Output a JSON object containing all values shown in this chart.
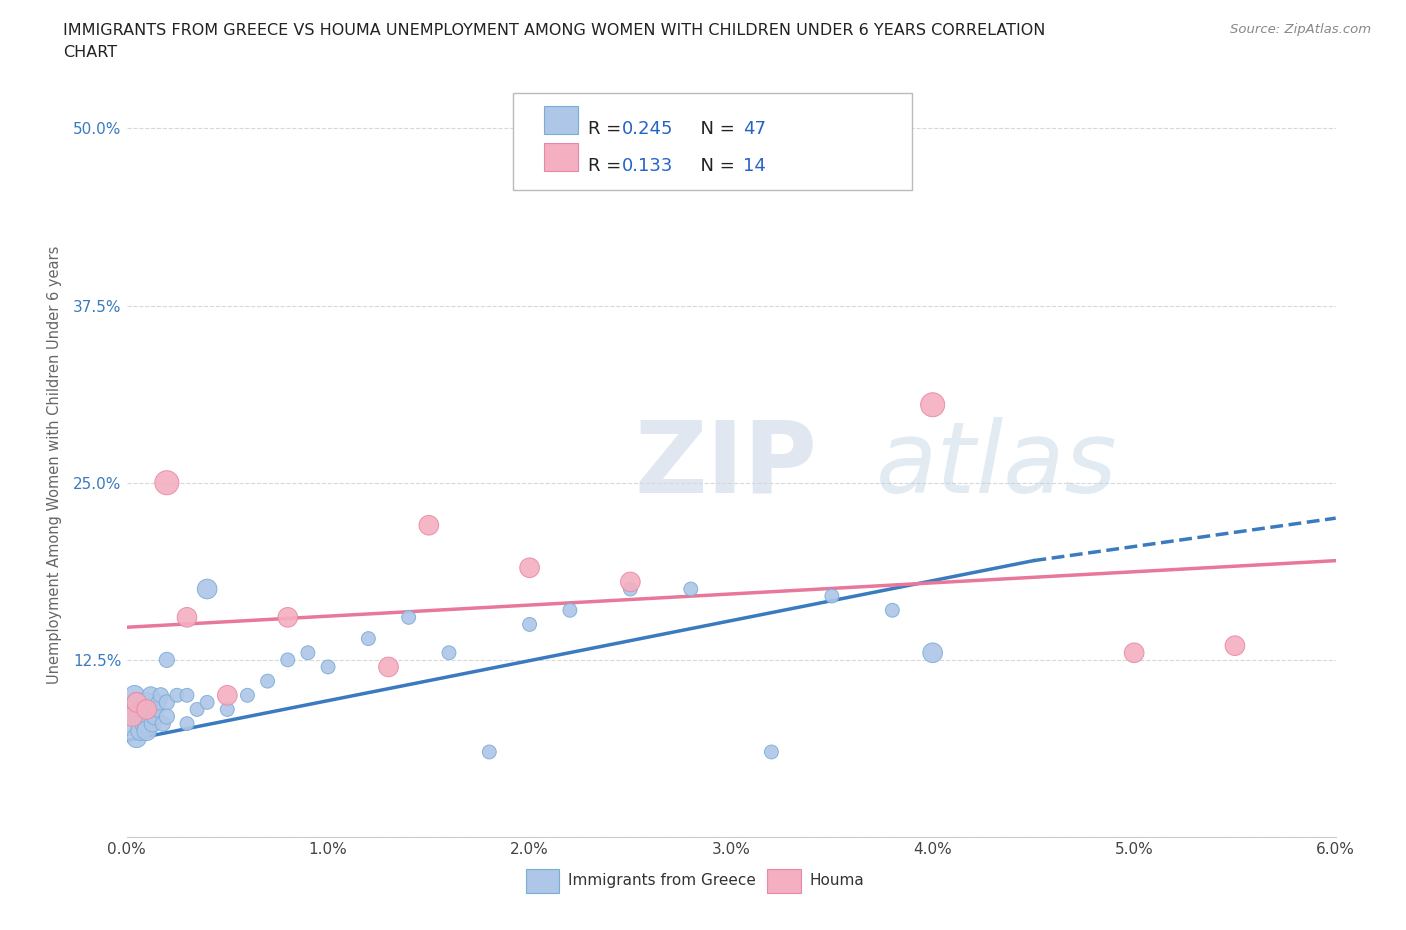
{
  "title_line1": "IMMIGRANTS FROM GREECE VS HOUMA UNEMPLOYMENT AMONG WOMEN WITH CHILDREN UNDER 6 YEARS CORRELATION",
  "title_line2": "CHART",
  "source": "Source: ZipAtlas.com",
  "ylabel": "Unemployment Among Women with Children Under 6 years",
  "xlim": [
    0.0,
    0.06
  ],
  "ylim": [
    0.0,
    0.525
  ],
  "xticks": [
    0.0,
    0.01,
    0.02,
    0.03,
    0.04,
    0.05,
    0.06
  ],
  "xticklabels": [
    "0.0%",
    "1.0%",
    "2.0%",
    "3.0%",
    "4.0%",
    "5.0%",
    "6.0%"
  ],
  "yticks": [
    0.0,
    0.125,
    0.25,
    0.375,
    0.5
  ],
  "yticklabels": [
    "",
    "12.5%",
    "25.0%",
    "37.5%",
    "50.0%"
  ],
  "legend_r1": "R = 0.245",
  "legend_n1": "N = 47",
  "legend_r2": "R =  0.133",
  "legend_n2": "N = 14",
  "blue_color": "#aec6e8",
  "blue_edge_color": "#7aadd4",
  "pink_color": "#f4afc0",
  "pink_edge_color": "#e888a8",
  "blue_line_color": "#3a7abf",
  "pink_line_color": "#e8789a",
  "blue_scatter_x": [
    0.0002,
    0.0003,
    0.0004,
    0.0005,
    0.0005,
    0.0006,
    0.0007,
    0.0008,
    0.0009,
    0.001,
    0.001,
    0.001,
    0.0012,
    0.0012,
    0.0013,
    0.0014,
    0.0015,
    0.0016,
    0.0017,
    0.0018,
    0.002,
    0.002,
    0.002,
    0.0025,
    0.003,
    0.003,
    0.0035,
    0.004,
    0.004,
    0.005,
    0.006,
    0.007,
    0.008,
    0.009,
    0.01,
    0.012,
    0.014,
    0.016,
    0.018,
    0.02,
    0.022,
    0.025,
    0.028,
    0.032,
    0.035,
    0.038,
    0.04
  ],
  "blue_scatter_y": [
    0.08,
    0.09,
    0.1,
    0.07,
    0.095,
    0.085,
    0.075,
    0.09,
    0.08,
    0.095,
    0.085,
    0.075,
    0.09,
    0.1,
    0.08,
    0.085,
    0.09,
    0.095,
    0.1,
    0.08,
    0.095,
    0.085,
    0.125,
    0.1,
    0.1,
    0.08,
    0.09,
    0.095,
    0.175,
    0.09,
    0.1,
    0.11,
    0.125,
    0.13,
    0.12,
    0.14,
    0.155,
    0.13,
    0.06,
    0.15,
    0.16,
    0.175,
    0.175,
    0.06,
    0.17,
    0.16,
    0.13
  ],
  "blue_scatter_sizes": [
    300,
    200,
    200,
    200,
    200,
    200,
    200,
    200,
    200,
    200,
    200,
    200,
    150,
    150,
    150,
    150,
    120,
    120,
    120,
    120,
    120,
    120,
    120,
    100,
    100,
    100,
    100,
    100,
    200,
    100,
    100,
    100,
    100,
    100,
    100,
    100,
    100,
    100,
    100,
    100,
    100,
    100,
    100,
    100,
    100,
    100,
    200
  ],
  "pink_scatter_x": [
    0.0003,
    0.0005,
    0.001,
    0.002,
    0.003,
    0.005,
    0.008,
    0.013,
    0.015,
    0.02,
    0.025,
    0.04,
    0.05,
    0.055
  ],
  "pink_scatter_y": [
    0.085,
    0.095,
    0.09,
    0.25,
    0.155,
    0.1,
    0.155,
    0.12,
    0.22,
    0.19,
    0.18,
    0.305,
    0.13,
    0.135
  ],
  "pink_scatter_sizes": [
    200,
    200,
    200,
    300,
    200,
    200,
    200,
    200,
    200,
    200,
    200,
    300,
    200,
    200
  ],
  "blue_trend_x0": 0.0,
  "blue_trend_x1": 0.045,
  "blue_trend_x2": 0.06,
  "blue_trend_y0": 0.068,
  "blue_trend_y1": 0.195,
  "blue_trend_y2": 0.225,
  "pink_trend_x0": 0.0,
  "pink_trend_x1": 0.06,
  "pink_trend_y0": 0.148,
  "pink_trend_y1": 0.195,
  "watermark_zip": "ZIP",
  "watermark_atlas": "atlas",
  "background_color": "#ffffff",
  "grid_color": "#d8d8d8"
}
